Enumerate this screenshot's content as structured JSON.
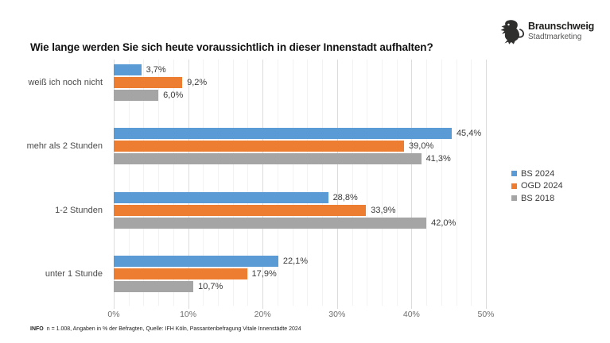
{
  "logo": {
    "brand": "Braunschweig",
    "sub": "Stadtmarketing",
    "icon": "braunschweig-lion-icon"
  },
  "title": "Wie lange werden Sie sich heute voraussichtlich in dieser Innenstadt aufhalten?",
  "chart_data": {
    "type": "bar",
    "orientation": "horizontal",
    "title": "Wie lange werden Sie sich heute voraussichtlich in dieser Innenstadt aufhalten?",
    "categories": [
      "weiß ich noch nicht",
      "mehr als 2 Stunden",
      "1-2 Stunden",
      "unter 1 Stunde"
    ],
    "series": [
      {
        "name": "BS 2024",
        "color": "#5B9BD5",
        "values": [
          3.7,
          45.4,
          28.8,
          22.1
        ],
        "labels": [
          "3,7%",
          "45,4%",
          "28,8%",
          "22,1%"
        ]
      },
      {
        "name": "OGD 2024",
        "color": "#ED7D31",
        "values": [
          9.2,
          39.0,
          33.9,
          17.9
        ],
        "labels": [
          "9,2%",
          "39,0%",
          "33,9%",
          "17,9%"
        ]
      },
      {
        "name": "BS 2018",
        "color": "#A5A5A5",
        "values": [
          6.0,
          41.3,
          42.0,
          10.7
        ],
        "labels": [
          "6,0%",
          "41,3%",
          "42,0%",
          "10,7%"
        ]
      }
    ],
    "xlim": [
      0,
      50
    ],
    "x_ticks": [
      {
        "value": 0,
        "label": "0%"
      },
      {
        "value": 10,
        "label": "10%"
      },
      {
        "value": 20,
        "label": "20%"
      },
      {
        "value": 30,
        "label": "30%"
      },
      {
        "value": 40,
        "label": "40%"
      },
      {
        "value": 50,
        "label": "50%"
      }
    ],
    "minor_grid_step": 2,
    "grid": "vertical",
    "legend_position": "right",
    "value_label_format": "german-percent"
  },
  "footer": {
    "info_label": "INFO",
    "text": "n = 1.008, Angaben in % der Befragten, Quelle: IFH Köln, Passantenbefragung Vitale Innenstädte 2024"
  },
  "colors": {
    "bs2024": "#5B9BD5",
    "ogd2024": "#ED7D31",
    "bs2018": "#A5A5A5",
    "grid_major": "#dcdcdc",
    "grid_minor": "#f2f2f2"
  }
}
